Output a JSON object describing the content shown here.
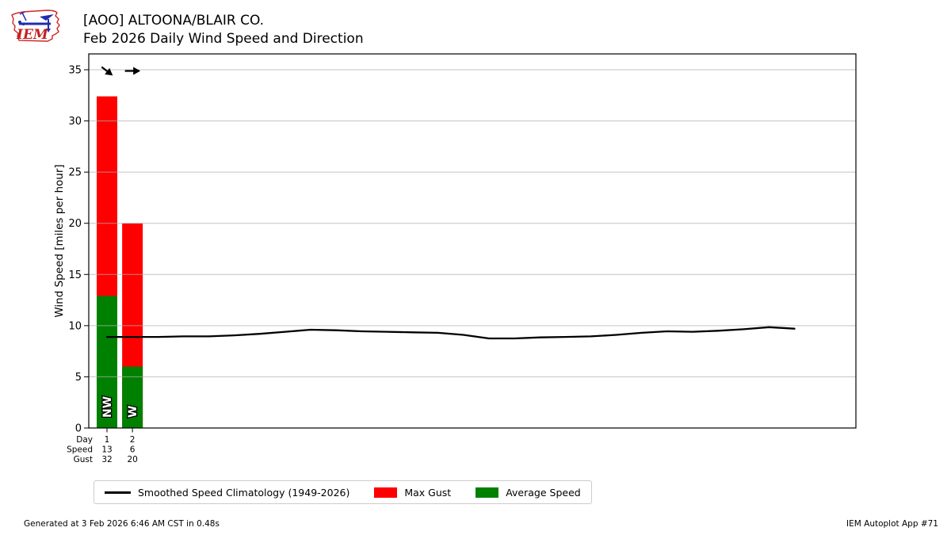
{
  "header": {
    "logo_text": "IEM",
    "title_line1": "[AOO] ALTOONA/BLAIR CO.",
    "title_line2": "Feb 2026 Daily Wind Speed and Direction"
  },
  "chart_data": {
    "type": "bar",
    "title": "Feb 2026 Daily Wind Speed and Direction",
    "xlabel": "Day",
    "ylabel": "Wind Speed [miles per hour]",
    "ylim": [
      0,
      36.6
    ],
    "yticks": [
      0,
      5,
      10,
      15,
      20,
      25,
      30,
      35
    ],
    "grid": "horizontal",
    "days": [
      1,
      2
    ],
    "wind_directions": [
      "NW",
      "W"
    ],
    "series": [
      {
        "name": "Max Gust",
        "type": "bar",
        "color": "#ff0000",
        "values": [
          32.4,
          20.0
        ]
      },
      {
        "name": "Average Speed",
        "type": "bar",
        "color": "#008000",
        "values": [
          12.9,
          6.0
        ]
      },
      {
        "name": "Smoothed Speed Climatology (1949-2026)",
        "type": "line",
        "color": "#000000",
        "x": [
          1,
          2,
          3,
          4,
          5,
          6,
          7,
          8,
          9,
          10,
          11,
          12,
          13,
          14,
          15,
          16,
          17,
          18,
          19,
          20,
          21,
          22,
          23,
          24,
          25,
          26,
          27,
          28
        ],
        "values": [
          8.9,
          8.9,
          8.9,
          8.95,
          8.95,
          9.05,
          9.2,
          9.4,
          9.6,
          9.55,
          9.45,
          9.4,
          9.35,
          9.3,
          9.1,
          8.75,
          8.75,
          8.85,
          8.9,
          8.95,
          9.1,
          9.3,
          9.45,
          9.4,
          9.5,
          9.65,
          9.85,
          9.7
        ]
      }
    ],
    "bottom_rows": [
      {
        "label": "Day",
        "values": [
          "1",
          "2"
        ]
      },
      {
        "label": "Speed",
        "values": [
          "13",
          "6"
        ]
      },
      {
        "label": "Gust",
        "values": [
          "32",
          "20"
        ]
      }
    ]
  },
  "legend": {
    "items": [
      {
        "label": "Smoothed Speed Climatology (1949-2026)",
        "swatch": "line",
        "color": "#000000"
      },
      {
        "label": "Max Gust",
        "swatch": "rect",
        "color": "#ff0000"
      },
      {
        "label": "Average Speed",
        "swatch": "rect",
        "color": "#008000"
      }
    ]
  },
  "footer": {
    "left": "Generated at 3 Feb 2026 6:46 AM CST in 0.48s",
    "right": "IEM Autoplot App #71"
  }
}
